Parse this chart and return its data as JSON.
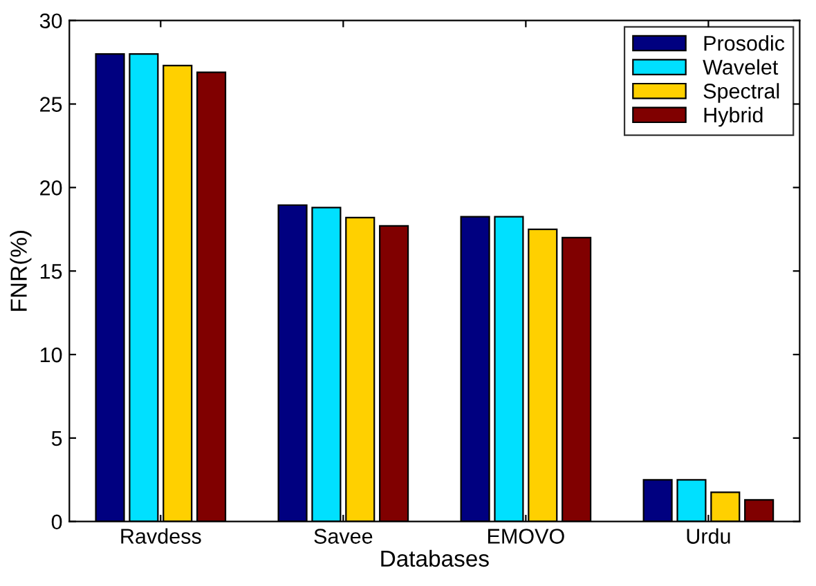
{
  "chart_data": {
    "type": "bar",
    "xlabel": "Databases",
    "ylabel": "FNR(%)",
    "categories": [
      "Ravdess",
      "Savee",
      "EMOVO",
      "Urdu"
    ],
    "series": [
      {
        "name": "Prosodic",
        "color": "#000080",
        "values": [
          28.0,
          18.95,
          18.25,
          2.5
        ]
      },
      {
        "name": "Wavelet",
        "color": "#00e0ff",
        "values": [
          28.0,
          18.8,
          18.25,
          2.5
        ]
      },
      {
        "name": "Spectral",
        "color": "#ffd000",
        "values": [
          27.3,
          18.2,
          17.5,
          1.75
        ]
      },
      {
        "name": "Hybrid",
        "color": "#800000",
        "values": [
          26.9,
          17.7,
          17.0,
          1.3
        ]
      }
    ],
    "ylim": [
      0,
      30
    ],
    "yticks": [
      0,
      5,
      10,
      15,
      20,
      25,
      30
    ],
    "grid": false,
    "legend": "top right"
  }
}
